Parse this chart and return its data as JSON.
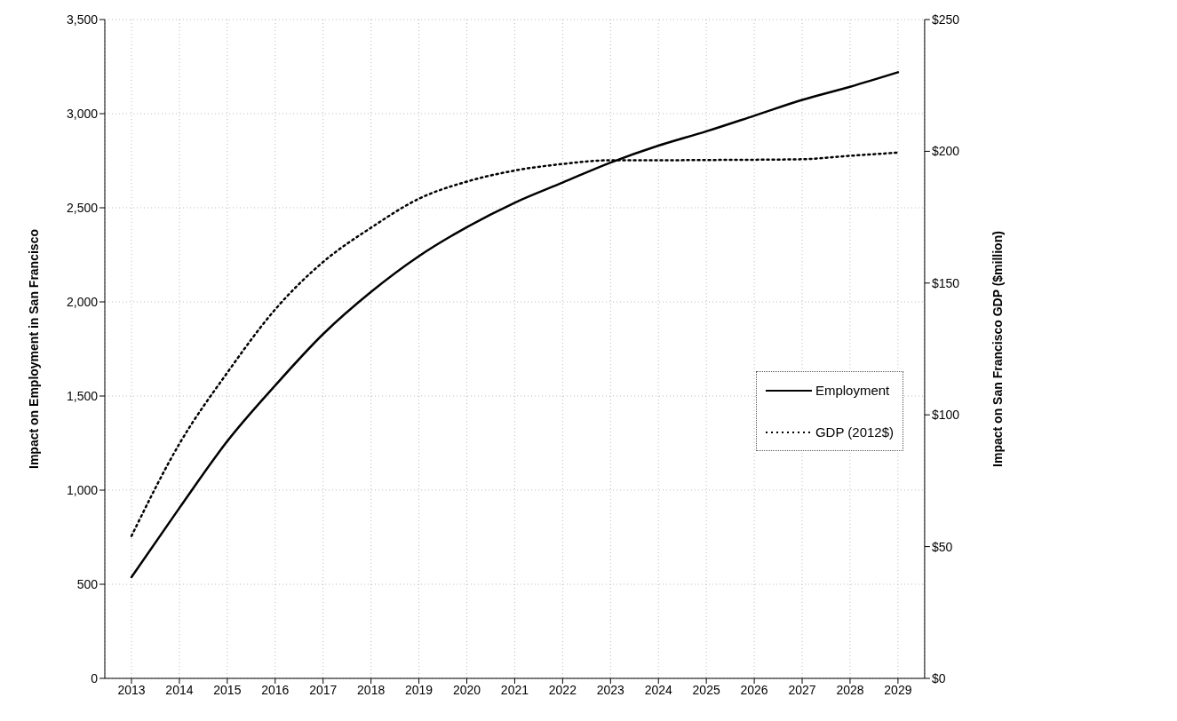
{
  "chart_data": {
    "type": "line",
    "ylabel": "Impact on Employment in San Francisco",
    "y2label": "Impact on San Francisco GDP ($million)",
    "categories": [
      "2013",
      "2014",
      "2015",
      "2016",
      "2017",
      "2018",
      "2019",
      "2020",
      "2021",
      "2022",
      "2023",
      "2024",
      "2025",
      "2026",
      "2027",
      "2028",
      "2029"
    ],
    "series": [
      {
        "name": "Employment",
        "color": "#000000",
        "line_style": "solid",
        "values": [
          538,
          905,
          1260,
          1556,
          1829,
          2053,
          2243,
          2397,
          2527,
          2634,
          2740,
          2830,
          2906,
          2989,
          3073,
          3143,
          3220
        ]
      },
      {
        "name": "GDP (2012$)",
        "color": "#000000",
        "line_style": "dotted",
        "axis": "y2",
        "values": [
          54,
          89,
          116,
          140,
          158,
          171,
          182,
          188.5,
          192.7,
          195.2,
          196.6,
          196.6,
          196.7,
          196.8,
          197,
          198.3,
          199.5
        ]
      }
    ],
    "ylim": [
      0,
      3500
    ],
    "yticks": [
      {
        "value": 0,
        "label": "0"
      },
      {
        "value": 500,
        "label": "500"
      },
      {
        "value": 1000,
        "label": "1,000"
      },
      {
        "value": 1500,
        "label": "1,500"
      },
      {
        "value": 2000,
        "label": "2,000"
      },
      {
        "value": 2500,
        "label": "2,500"
      },
      {
        "value": 3000,
        "label": "3,000"
      },
      {
        "value": 3500,
        "label": "3,500"
      }
    ],
    "y2lim": [
      0,
      250
    ],
    "y2ticks": [
      {
        "value": 0,
        "label": "$0"
      },
      {
        "value": 50,
        "label": "$50"
      },
      {
        "value": 100,
        "label": "$100"
      },
      {
        "value": 150,
        "label": "$150"
      },
      {
        "value": 200,
        "label": "$200"
      },
      {
        "value": 250,
        "label": "$250"
      }
    ],
    "grid": true,
    "legend": "right",
    "marker": "none"
  }
}
